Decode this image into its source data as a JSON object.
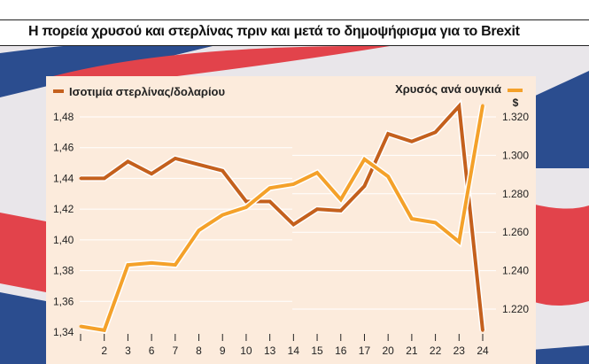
{
  "title": "Η πορεία χρυσού και στερλίνας πριν και μετά το δημοψήφισμα για το Brexit",
  "colors": {
    "pound": "#c4601d",
    "gold": "#f4a12a",
    "panel": "#fcebdc",
    "flag_blue": "#2b4d8f",
    "flag_red": "#e2434b"
  },
  "chart_data": {
    "type": "line",
    "background": "union-jack-flag",
    "grid": true,
    "categories": [
      "",
      "2",
      "3",
      "6",
      "7",
      "8",
      "9",
      "10",
      "13",
      "14",
      "15",
      "16",
      "17",
      "20",
      "21",
      "22",
      "23",
      "24"
    ],
    "series": [
      {
        "name": "Ισοτιμία στερλίνας/δολαρίου",
        "axis": "left",
        "legend": "top-left",
        "values": [
          1.44,
          1.44,
          1.451,
          1.443,
          1.453,
          1.449,
          1.445,
          1.425,
          1.425,
          1.41,
          1.42,
          1.419,
          1.435,
          1.469,
          1.464,
          1.47,
          1.487,
          1.341
        ]
      },
      {
        "name": "Χρυσός ανά ουγκιά",
        "axis": "right",
        "legend": "top-right",
        "values": [
          1211,
          1209,
          1243,
          1244,
          1243,
          1261,
          1269,
          1273,
          1283,
          1285,
          1291,
          1277,
          1298,
          1289,
          1267,
          1265,
          1255,
          1326
        ]
      }
    ],
    "left_axis": {
      "ylim": [
        1.34,
        1.48
      ],
      "ticks": [
        "1,48",
        "1,46",
        "1,44",
        "1,42",
        "1,40",
        "1,38",
        "1,36",
        "1,34"
      ]
    },
    "right_axis": {
      "unit": "$",
      "ylim": [
        1.22,
        1.32
      ],
      "ticks": [
        "1.320",
        "1.300",
        "1.280",
        "1.260",
        "1.240",
        "1.220"
      ]
    }
  }
}
